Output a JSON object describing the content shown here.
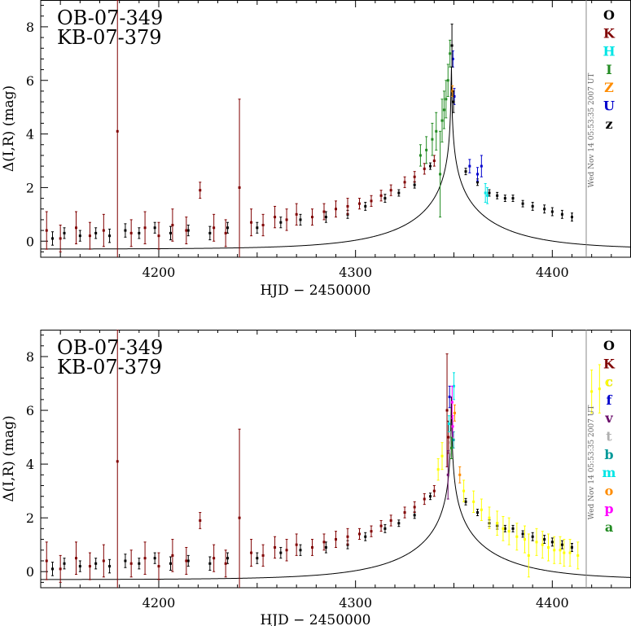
{
  "chart_data": [
    {
      "type": "scatter",
      "title_lines": [
        "OB-07-349",
        "KB-07-379"
      ],
      "xlabel": "HJD − 2450000",
      "ylabel": "Δ(I,R) (mag)",
      "xlim": [
        4140,
        4440
      ],
      "ylim": [
        -0.6,
        9
      ],
      "x_ticks": [
        4200,
        4300,
        4400
      ],
      "y_ticks": [
        0,
        2,
        4,
        6,
        8
      ],
      "timestamp": "Wed Nov 14 05:53:35 2007 UT",
      "legend_placement": "right",
      "legend": [
        {
          "label": "O",
          "color": "#000000"
        },
        {
          "label": "K",
          "color": "#800000"
        },
        {
          "label": "H",
          "color": "#00e5e5"
        },
        {
          "label": "I",
          "color": "#228b22"
        },
        {
          "label": "Z",
          "color": "#ff8c00"
        },
        {
          "label": "U",
          "color": "#0000cd"
        },
        {
          "label": "z",
          "color": "#000000"
        }
      ],
      "model_curve": {
        "t0": 4348.7,
        "tE": 50,
        "u0": 0.0016,
        "mag_offset": -0.3
      },
      "series": [
        {
          "label": "O",
          "color": "#000000",
          "x": [
            4146,
            4152,
            4160,
            4168,
            4175,
            4183,
            4190,
            4198,
            4206,
            4215,
            4226,
            4235,
            4250,
            4262,
            4272,
            4285,
            4296,
            4305,
            4315,
            4322,
            4330,
            4338,
            4356,
            4362,
            4368,
            4372,
            4376,
            4380,
            4385,
            4390,
            4396,
            4400,
            4405,
            4410
          ],
          "y": [
            0.1,
            0.3,
            0.2,
            0.3,
            0.2,
            0.4,
            0.3,
            0.5,
            0.3,
            0.4,
            0.3,
            0.5,
            0.5,
            0.7,
            0.8,
            0.9,
            1.0,
            1.3,
            1.6,
            1.8,
            2.1,
            2.8,
            2.6,
            2.2,
            1.8,
            1.7,
            1.6,
            1.6,
            1.4,
            1.3,
            1.2,
            1.1,
            1.0,
            0.9
          ],
          "err": [
            0.25,
            0.2,
            0.2,
            0.2,
            0.25,
            0.25,
            0.2,
            0.2,
            0.25,
            0.2,
            0.25,
            0.2,
            0.2,
            0.2,
            0.2,
            0.2,
            0.15,
            0.15,
            0.15,
            0.12,
            0.12,
            0.12,
            0.12,
            0.12,
            0.12,
            0.12,
            0.12,
            0.12,
            0.12,
            0.15,
            0.15,
            0.15,
            0.15,
            0.15
          ]
        },
        {
          "label": "K",
          "color": "#800000",
          "x": [
            4143,
            4150,
            4158,
            4165,
            4172,
            4179,
            4186,
            4193,
            4200,
            4207,
            4214,
            4221,
            4228,
            4234,
            4241,
            4247,
            4253,
            4259,
            4265,
            4270,
            4278,
            4284,
            4290,
            4296,
            4302,
            4308,
            4313,
            4318,
            4325,
            4330,
            4335,
            4340
          ],
          "y": [
            0.4,
            0.1,
            0.5,
            0.2,
            0.4,
            4.1,
            0.3,
            0.5,
            0.2,
            0.6,
            0.4,
            1.9,
            0.5,
            0.3,
            2.0,
            0.7,
            0.6,
            0.9,
            0.8,
            1.0,
            0.9,
            1.1,
            1.2,
            1.3,
            1.4,
            1.5,
            1.7,
            1.9,
            2.2,
            2.4,
            2.7,
            3.0
          ],
          "err": [
            0.7,
            0.5,
            0.6,
            0.5,
            0.6,
            4.9,
            0.5,
            0.6,
            0.5,
            0.6,
            0.5,
            0.3,
            0.5,
            0.5,
            3.3,
            0.5,
            0.4,
            0.4,
            0.4,
            0.4,
            0.3,
            0.3,
            0.3,
            0.3,
            0.2,
            0.2,
            0.2,
            0.2,
            0.2,
            0.2,
            0.2,
            0.2
          ]
        },
        {
          "label": "H",
          "color": "#00e5e5",
          "x": [
            4366,
            4367
          ],
          "y": [
            1.8,
            1.7
          ],
          "err": [
            0.35,
            0.3
          ]
        },
        {
          "label": "I",
          "color": "#228b22",
          "x": [
            4333,
            4336,
            4339,
            4341,
            4343,
            4344,
            4345,
            4346,
            4347,
            4348
          ],
          "y": [
            3.2,
            3.4,
            3.8,
            4.1,
            2.5,
            4.5,
            4.9,
            5.3,
            6.0,
            7.0
          ],
          "err": [
            0.4,
            0.5,
            0.6,
            0.7,
            1.6,
            0.8,
            0.7,
            0.7,
            0.6,
            0.5
          ]
        },
        {
          "label": "Z",
          "color": "#ff8c00",
          "x": [
            4349.3
          ],
          "y": [
            5.6
          ],
          "err": [
            0.2
          ]
        },
        {
          "label": "U",
          "color": "#0000cd",
          "x": [
            4349.5,
            4350.2,
            4358,
            4362,
            4364
          ],
          "y": [
            6.8,
            5.4,
            2.8,
            2.5,
            2.8
          ],
          "err": [
            0.3,
            0.3,
            0.25,
            0.25,
            0.4
          ]
        },
        {
          "label": "z",
          "color": "#000000",
          "x": [
            4349.0,
            4349.8
          ],
          "y": [
            7.3,
            5.2
          ],
          "err": [
            0.8,
            0.4
          ]
        }
      ]
    },
    {
      "type": "scatter",
      "title_lines": [
        "OB-07-349",
        "KB-07-379"
      ],
      "xlabel": "HJD − 2450000",
      "ylabel": "Δ(I,R) (mag)",
      "xlim": [
        4140,
        4440
      ],
      "ylim": [
        -0.6,
        9
      ],
      "x_ticks": [
        4200,
        4300,
        4400
      ],
      "y_ticks": [
        0,
        2,
        4,
        6,
        8
      ],
      "timestamp": "Wed Nov 14 05:53:35 2007 UT",
      "legend_placement": "right",
      "legend": [
        {
          "label": "O",
          "color": "#000000"
        },
        {
          "label": "K",
          "color": "#800000"
        },
        {
          "label": "c",
          "color": "#ffff00"
        },
        {
          "label": "f",
          "color": "#0000cd"
        },
        {
          "label": "v",
          "color": "#6a0d6a"
        },
        {
          "label": "t",
          "color": "#b0b0b0"
        },
        {
          "label": "b",
          "color": "#009999"
        },
        {
          "label": "m",
          "color": "#00e5e5"
        },
        {
          "label": "o",
          "color": "#ff8c00"
        },
        {
          "label": "p",
          "color": "#ff00ff"
        },
        {
          "label": "a",
          "color": "#228b22"
        }
      ],
      "model_curve": {
        "t0": 4348.7,
        "tE": 50,
        "u0": 0.0016,
        "mag_offset": -0.3
      },
      "series": [
        {
          "label": "O",
          "color": "#000000",
          "x": [
            4146,
            4152,
            4160,
            4168,
            4175,
            4183,
            4190,
            4198,
            4206,
            4215,
            4226,
            4235,
            4250,
            4262,
            4272,
            4285,
            4296,
            4305,
            4315,
            4322,
            4330,
            4338,
            4356,
            4362,
            4368,
            4372,
            4376,
            4380,
            4385,
            4390,
            4396,
            4400,
            4405,
            4410
          ],
          "y": [
            0.1,
            0.3,
            0.2,
            0.3,
            0.2,
            0.4,
            0.3,
            0.5,
            0.3,
            0.4,
            0.3,
            0.5,
            0.5,
            0.7,
            0.8,
            0.9,
            1.0,
            1.3,
            1.6,
            1.8,
            2.1,
            2.8,
            2.6,
            2.2,
            1.8,
            1.7,
            1.6,
            1.6,
            1.4,
            1.3,
            1.2,
            1.1,
            1.0,
            0.9
          ],
          "err": [
            0.25,
            0.2,
            0.2,
            0.2,
            0.25,
            0.25,
            0.2,
            0.2,
            0.25,
            0.2,
            0.25,
            0.2,
            0.2,
            0.2,
            0.2,
            0.2,
            0.15,
            0.15,
            0.15,
            0.12,
            0.12,
            0.12,
            0.12,
            0.12,
            0.12,
            0.12,
            0.12,
            0.12,
            0.12,
            0.15,
            0.15,
            0.15,
            0.15,
            0.15
          ]
        },
        {
          "label": "K",
          "color": "#800000",
          "x": [
            4143,
            4150,
            4158,
            4165,
            4172,
            4179,
            4186,
            4193,
            4200,
            4207,
            4214,
            4221,
            4228,
            4234,
            4241,
            4247,
            4253,
            4259,
            4265,
            4270,
            4278,
            4284,
            4290,
            4296,
            4302,
            4308,
            4313,
            4318,
            4325,
            4330,
            4335,
            4340,
            4346.5,
            4347.2
          ],
          "y": [
            0.4,
            0.1,
            0.5,
            0.2,
            0.4,
            4.1,
            0.3,
            0.5,
            0.2,
            0.6,
            0.4,
            1.9,
            0.5,
            0.3,
            2.0,
            0.7,
            0.6,
            0.9,
            0.8,
            1.0,
            0.9,
            1.1,
            1.2,
            1.3,
            1.4,
            1.5,
            1.7,
            1.9,
            2.2,
            2.4,
            2.7,
            3.0,
            6.0,
            5.0
          ],
          "err": [
            0.7,
            0.5,
            0.6,
            0.5,
            0.6,
            4.9,
            0.5,
            0.6,
            0.5,
            0.6,
            0.5,
            0.3,
            0.5,
            0.5,
            3.3,
            0.5,
            0.4,
            0.4,
            0.4,
            0.4,
            0.3,
            0.3,
            0.3,
            0.3,
            0.2,
            0.2,
            0.2,
            0.2,
            0.2,
            0.2,
            0.2,
            0.2,
            2.1,
            0.6
          ]
        },
        {
          "label": "c",
          "color": "#ffff00",
          "x": [
            4342,
            4344,
            4355,
            4360,
            4364,
            4368,
            4372,
            4375,
            4378,
            4382,
            4386,
            4388,
            4392,
            4395,
            4398,
            4401,
            4404,
            4406,
            4409,
            4413,
            4420,
            4424
          ],
          "y": [
            3.8,
            4.3,
            3.0,
            2.6,
            2.3,
            2.0,
            1.8,
            1.6,
            1.5,
            1.3,
            1.2,
            0.6,
            1.1,
            1.0,
            0.9,
            0.8,
            0.8,
            0.7,
            0.7,
            0.6,
            6.7,
            6.8
          ],
          "err": [
            0.4,
            0.5,
            0.4,
            0.4,
            0.4,
            0.4,
            0.45,
            0.45,
            0.5,
            0.5,
            0.5,
            0.8,
            0.5,
            0.5,
            0.5,
            0.5,
            0.5,
            0.5,
            0.5,
            0.5,
            0.8,
            0.9
          ]
        },
        {
          "label": "f",
          "color": "#0000cd",
          "x": [
            4347.8
          ],
          "y": [
            6.5
          ],
          "err": [
            0.4
          ]
        },
        {
          "label": "v",
          "color": "#6a0d6a",
          "x": [
            4347.0
          ],
          "y": [
            3.6
          ],
          "err": [
            0.9
          ]
        },
        {
          "label": "t",
          "color": "#b0b0b0",
          "x": [
            4348.2
          ],
          "y": [
            4.8
          ],
          "err": [
            0.4
          ]
        },
        {
          "label": "b",
          "color": "#009999",
          "x": [
            4349.8
          ],
          "y": [
            4.9
          ],
          "err": [
            0.3
          ]
        },
        {
          "label": "m",
          "color": "#00e5e5",
          "x": [
            4347.5,
            4350.0
          ],
          "y": [
            5.5,
            6.9
          ],
          "err": [
            0.3,
            0.5
          ]
        },
        {
          "label": "o",
          "color": "#ff8c00",
          "x": [
            4350.4,
            4353
          ],
          "y": [
            5.9,
            3.6
          ],
          "err": [
            0.3,
            0.3
          ]
        },
        {
          "label": "p",
          "color": "#ff00ff",
          "x": [
            4349.1,
            4349.4
          ],
          "y": [
            6.3,
            5.4
          ],
          "err": [
            0.6,
            0.4
          ]
        },
        {
          "label": "a",
          "color": "#228b22",
          "x": [
            4348.8
          ],
          "y": [
            4.6
          ],
          "err": [
            0.4
          ]
        }
      ]
    }
  ]
}
